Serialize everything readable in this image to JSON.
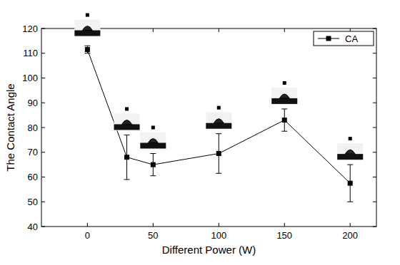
{
  "chart_data": {
    "type": "line",
    "x_label": "Different Power (W)",
    "y_label": "The Contact Angle",
    "x": [
      0,
      30,
      50,
      100,
      150,
      200
    ],
    "series": [
      {
        "name": "CA",
        "color": "#000000",
        "marker": "square",
        "line_style": "solid",
        "values": [
          111.5,
          68,
          65,
          69.5,
          83,
          57.5
        ],
        "errors": [
          1.5,
          9,
          4.5,
          8,
          4.5,
          7.5
        ]
      }
    ],
    "xlim": [
      -35,
      220
    ],
    "xticks": [
      0,
      50,
      100,
      150,
      200
    ],
    "ylim": [
      40,
      120
    ],
    "yticks": [
      40,
      50,
      60,
      70,
      80,
      90,
      100,
      110,
      120
    ],
    "grid": false,
    "legend": "upper right"
  }
}
